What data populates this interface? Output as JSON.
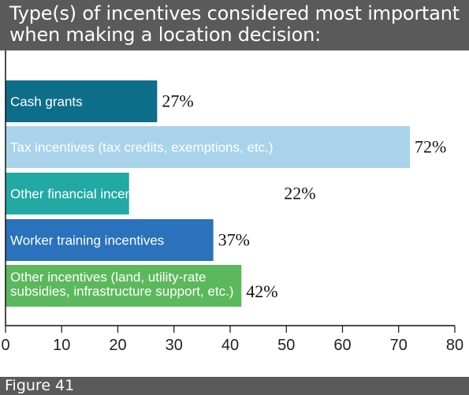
{
  "chart_data": {
    "type": "bar",
    "orientation": "horizontal",
    "title": "Type(s) of incentives considered most important when making a location decision:",
    "categories": [
      [
        "Cash grants"
      ],
      [
        "Tax incentives (tax credits, exemptions, etc.)"
      ],
      [
        "Other financial incentives (bonds, loans, etc.)"
      ],
      [
        "Worker training incentives"
      ],
      [
        "Other incentives (land, utility-rate",
        "subsidies, infrastructure support, etc.)"
      ]
    ],
    "values": [
      27,
      72,
      22,
      37,
      42
    ],
    "value_labels": [
      "27%",
      "72%",
      "22%",
      "37%",
      "42%"
    ],
    "colors": [
      "#0d6e8a",
      "#a9d3ea",
      "#22a9a3",
      "#2a72bb",
      "#5cb85c"
    ],
    "label_colors": [
      "#ffffff",
      "#1a1a1a",
      "#1a1a1a",
      "#ffffff",
      "#1a1a1a"
    ],
    "xlim": [
      0,
      80
    ],
    "xticks": [
      "0",
      "10",
      "20",
      "30",
      "40",
      "50",
      "60",
      "70",
      "80"
    ],
    "xlabel": "",
    "ylabel": "",
    "grid": false
  },
  "footer": {
    "label": "Figure 41"
  }
}
